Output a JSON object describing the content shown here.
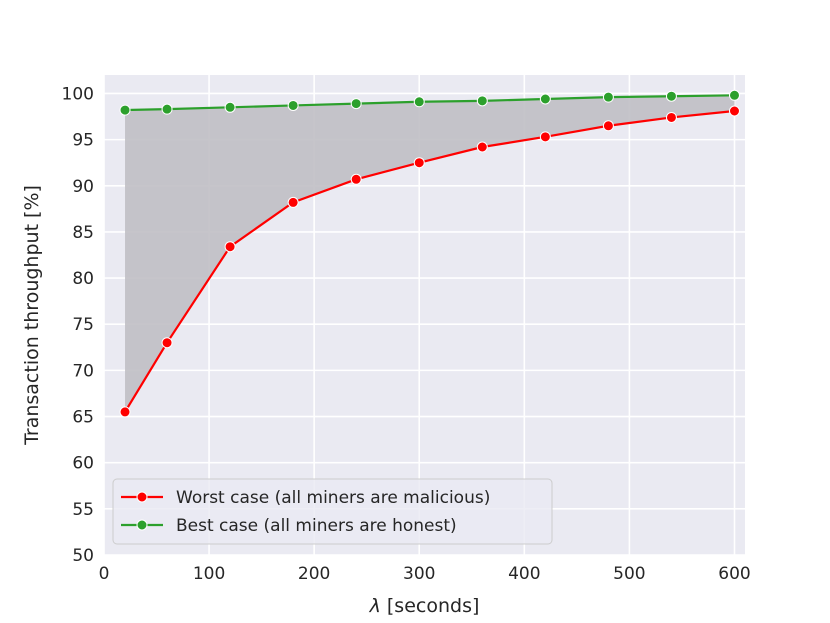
{
  "chart_data": {
    "type": "line",
    "title": "",
    "xlabel_symbol": "λ",
    "xlabel_rest": " [seconds]",
    "ylabel": "Transaction throughput [%]",
    "xlim": [
      0,
      610
    ],
    "ylim": [
      50,
      102
    ],
    "xticks": [
      0,
      100,
      200,
      300,
      400,
      500,
      600
    ],
    "yticks": [
      50,
      55,
      60,
      65,
      70,
      75,
      80,
      85,
      90,
      95,
      100
    ],
    "grid": true,
    "legend_position": "lower-left",
    "fill_between": true,
    "x": [
      20,
      60,
      120,
      180,
      240,
      300,
      360,
      420,
      480,
      540,
      600
    ],
    "series": [
      {
        "name": "Worst case (all miners are malicious)",
        "color": "#ff0000",
        "values": [
          65.5,
          73.0,
          83.4,
          88.2,
          90.7,
          92.5,
          94.2,
          95.3,
          96.5,
          97.4,
          98.1
        ]
      },
      {
        "name": "Best case (all miners are honest)",
        "color": "#2ca02c",
        "values": [
          98.2,
          98.3,
          98.5,
          98.7,
          98.9,
          99.1,
          99.2,
          99.4,
          99.6,
          99.7,
          99.8
        ]
      }
    ],
    "colors": {
      "plot_background": "#eaeaf2",
      "grid": "#ffffff",
      "fill": "#c0bfc4"
    }
  }
}
